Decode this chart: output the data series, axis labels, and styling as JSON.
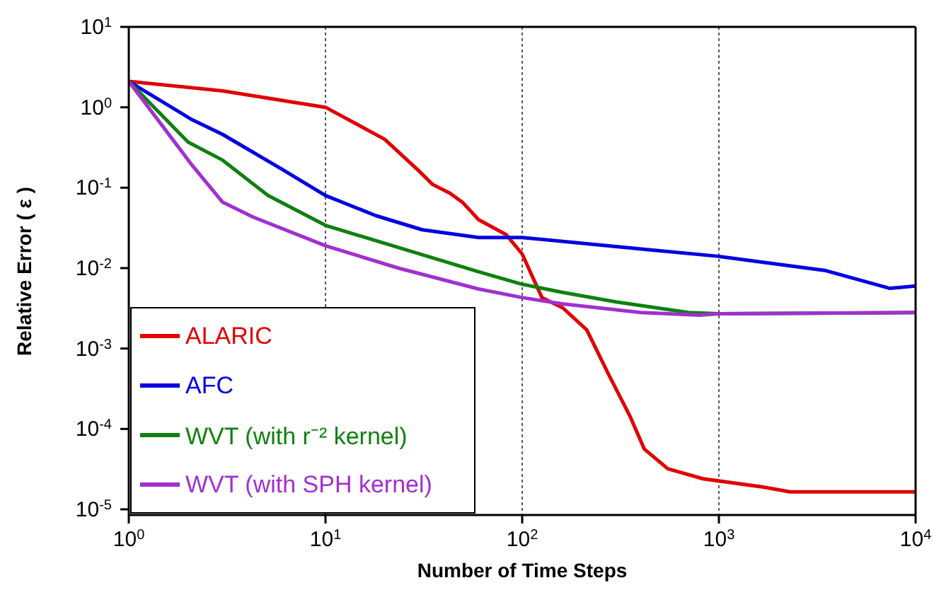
{
  "chart_data": {
    "type": "line",
    "xlabel": "Number of Time Steps",
    "ylabel": "Relative Error ( ε )",
    "log": "xy",
    "grid": "x",
    "legend": "bottom left",
    "line_style": "solid",
    "marker": "none",
    "xlim": [
      1,
      10000
    ],
    "xticks": [
      {
        "value": 1,
        "label": "10$^{0}$"
      },
      {
        "value": 10,
        "label": "10$^{1}$"
      },
      {
        "value": 100,
        "label": "10$^{2}$"
      },
      {
        "value": 1000,
        "label": "10$^{3}$"
      },
      {
        "value": 10000,
        "label": "10$^{4}$"
      }
    ],
    "ylim": [
      8.5e-06,
      10
    ],
    "yticks": [
      {
        "value": 1e-05,
        "label": "10$^{-5}$"
      },
      {
        "value": 0.0001,
        "label": "10$^{-4}$"
      },
      {
        "value": 0.001,
        "label": "10$^{-3}$"
      },
      {
        "value": 0.01,
        "label": "10$^{-2}$"
      },
      {
        "value": 0.1,
        "label": "10$^{-1}$"
      },
      {
        "value": 1,
        "label": "10$^{0}$"
      },
      {
        "value": 10,
        "label": "10$^{1}$"
      }
    ],
    "series": [
      {
        "name": "ALARIC",
        "color": "#e00000",
        "x": [
          1,
          3,
          10,
          20,
          30,
          35,
          43,
          50,
          60,
          83,
          100,
          126,
          161,
          213,
          277,
          355,
          418,
          550,
          830,
          1660,
          2300,
          10000
        ],
        "values": [
          2.1,
          1.6,
          1.0,
          0.4,
          0.16,
          0.11,
          0.085,
          0.065,
          0.04,
          0.026,
          0.015,
          0.0043,
          0.0032,
          0.0017,
          0.00046,
          0.00014,
          5.6e-05,
          3.2e-05,
          2.4e-05,
          1.9e-05,
          1.65e-05,
          1.65e-05
        ]
      },
      {
        "name": "AFC",
        "color": "#0000e0",
        "x": [
          1,
          2.1,
          3,
          6,
          10,
          18,
          31,
          60,
          100,
          430,
          1000,
          3500,
          7400,
          10000
        ],
        "values": [
          2.1,
          0.7,
          0.46,
          0.17,
          0.08,
          0.045,
          0.03,
          0.024,
          0.024,
          0.017,
          0.014,
          0.0093,
          0.0056,
          0.006
        ]
      },
      {
        "name": "WVT (with r⁻² kernel)",
        "color": "#108010",
        "x": [
          1,
          2,
          3,
          5.1,
          10,
          23.5,
          60,
          100,
          160,
          300,
          700,
          1000,
          10000
        ],
        "values": [
          2.1,
          0.37,
          0.22,
          0.08,
          0.034,
          0.018,
          0.009,
          0.0063,
          0.005,
          0.0038,
          0.0028,
          0.0027,
          0.0028
        ]
      },
      {
        "name": "WVT (with SPH kernel)",
        "color": "#a030d0",
        "x": [
          1,
          2.1,
          3,
          4.3,
          10,
          23.5,
          60,
          100,
          160,
          400,
          800,
          1000,
          10000
        ],
        "values": [
          2.1,
          0.19,
          0.066,
          0.043,
          0.019,
          0.01,
          0.0055,
          0.0043,
          0.0036,
          0.0028,
          0.0026,
          0.0027,
          0.0028
        ]
      }
    ]
  }
}
